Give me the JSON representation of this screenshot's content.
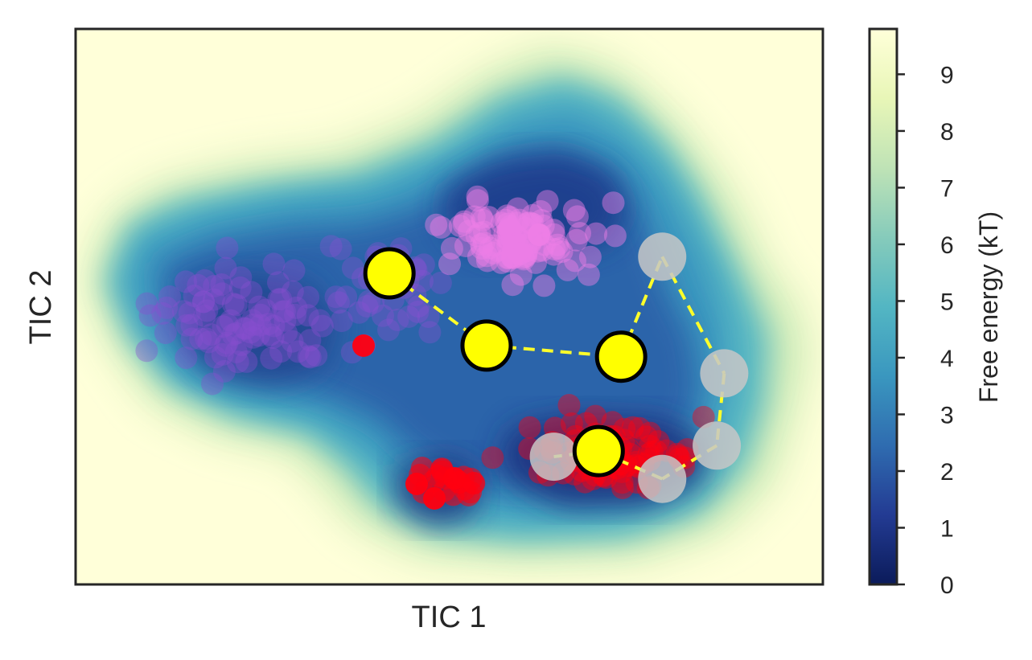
{
  "chart_data": {
    "type": "scatter",
    "title": "",
    "xlabel": "TIC 1",
    "ylabel": "TIC 2",
    "x_ticks_shown": false,
    "y_ticks_shown": false,
    "grid": false,
    "colorbar": {
      "label": "Free energy (kT)",
      "range": [
        0,
        9.8
      ],
      "ticks": [
        "0",
        "1",
        "2",
        "3",
        "4",
        "5",
        "6",
        "7",
        "8",
        "9"
      ],
      "colormap": "YlGnBu_r",
      "stops": [
        "#0b1b5a",
        "#233b93",
        "#2f6cb0",
        "#3a97bf",
        "#53b6c3",
        "#86cbbb",
        "#bfe3b6",
        "#e8f6b7",
        "#ffffd9"
      ]
    },
    "background": "free-energy heatmap",
    "point_colors": {
      "purple_cluster": "#8a4fd0",
      "pink_cluster": "#ee7ee6",
      "red_cluster": "#ff0010",
      "path_yellow": "#ffff00",
      "path_gray": "#c7c7c7",
      "path_line": "#ffff2a"
    },
    "series": [
      {
        "marker": "large yellow circles, black edge",
        "points": [
          [
            0.42,
            0.56
          ],
          [
            0.55,
            0.43
          ],
          [
            0.73,
            0.41
          ],
          [
            0.7,
            0.24
          ]
        ],
        "path_order": [
          0,
          1,
          2
        ]
      },
      {
        "marker": "large light-gray circles",
        "points": [
          [
            0.785,
            0.59
          ],
          [
            0.868,
            0.38
          ],
          [
            0.858,
            0.25
          ],
          [
            0.785,
            0.19
          ],
          [
            0.64,
            0.23
          ]
        ],
        "path_order": [
          0,
          1,
          2,
          3
        ]
      }
    ],
    "path_segments": [
      [
        [
          0.42,
          0.56
        ],
        [
          0.55,
          0.43
        ]
      ],
      [
        [
          0.55,
          0.43
        ],
        [
          0.73,
          0.41
        ]
      ],
      [
        [
          0.73,
          0.41
        ],
        [
          0.785,
          0.59
        ]
      ],
      [
        [
          0.785,
          0.59
        ],
        [
          0.868,
          0.38
        ]
      ],
      [
        [
          0.868,
          0.38
        ],
        [
          0.858,
          0.25
        ]
      ],
      [
        [
          0.858,
          0.25
        ],
        [
          0.785,
          0.19
        ]
      ],
      [
        [
          0.785,
          0.19
        ],
        [
          0.7,
          0.24
        ]
      ],
      [
        [
          0.7,
          0.24
        ],
        [
          0.64,
          0.23
        ]
      ]
    ],
    "xlim": [
      0,
      1
    ],
    "ylim": [
      0,
      1
    ]
  }
}
